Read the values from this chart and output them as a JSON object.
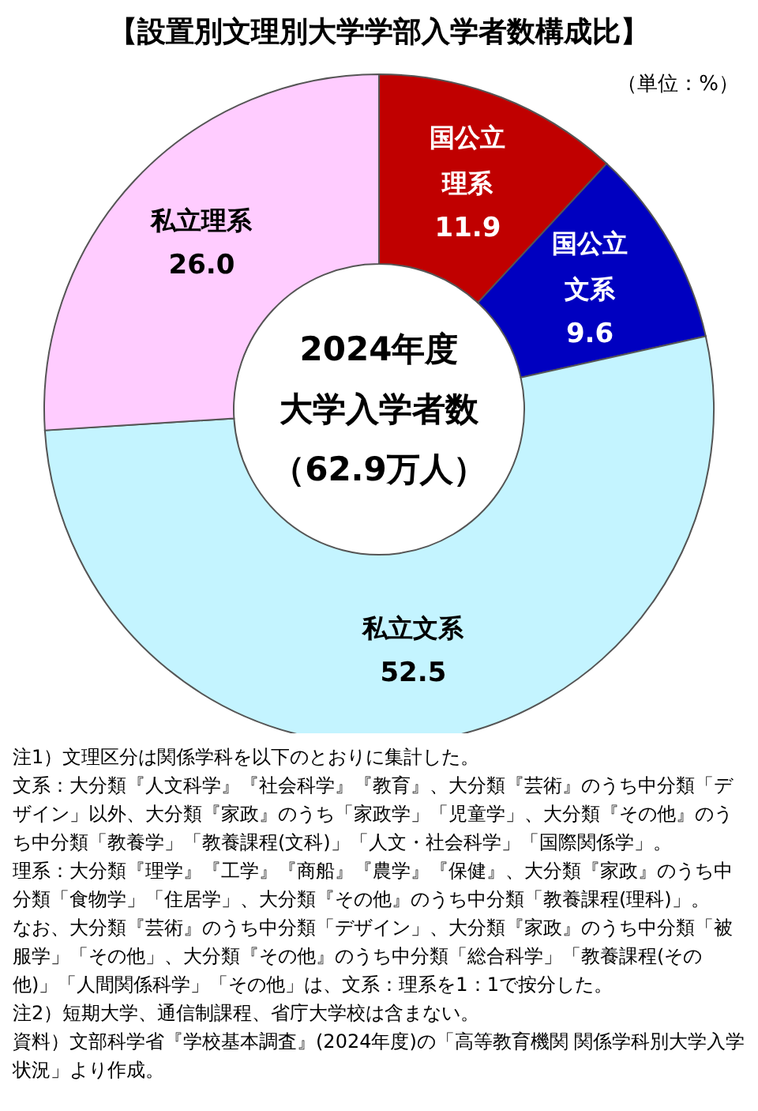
{
  "chart_data": {
    "type": "donut",
    "title": "【設置別文理別大学学部入学者数構成比】",
    "subtitle": "（単位：%）",
    "categories": [
      "国公立理系",
      "国公立文系",
      "私立文系",
      "私立理系"
    ],
    "values": [
      11.9,
      9.6,
      52.5,
      26.0
    ],
    "value_labels": [
      "11.9",
      "9.6",
      "52.5",
      "26.0"
    ],
    "colors": [
      "#c00000",
      "#0000c0",
      "#c4f4ff",
      "#ffccff"
    ],
    "legend": false,
    "annotations": [
      "2024年度",
      "大学入学者数",
      "（62.9万人）",
      "注1）文理区分は関係学科を以下のとおりに集計した。",
      "文系：大分類『人文科学』『社会科学』『教育』、大分類『芸術』のうち中分類「デザイン」以外、大分類『家政』のうち「家政学」「児童学」、大分類『その他』のうち中分類「教養学」「教養課程(文科)」「人文・社会科学」「国際関係学」。",
      "理系：大分類『理学』『工学』『商船』『農学』『保健』、大分類『家政』のうち中分類「食物学」「住居学」、大分類『その他』のうち中分類「教養課程(理科)」。",
      "なお、大分類『芸術』のうち中分類「デザイン」、大分類『家政』のうち中分類「被服学」「その他」、大分類『その他』のうち中分類「総合科学」「教養課程(その他)」「人間関係科学」「その他」は、文系：理系を1：1で按分した。",
      "注2）短期大学、通信制課程、省庁大学校は含まない。",
      "資料）文部科学省『学校基本調査』(2024年度)の「高等教育機関 関係学科別大学入学状況」より作成。"
    ]
  }
}
